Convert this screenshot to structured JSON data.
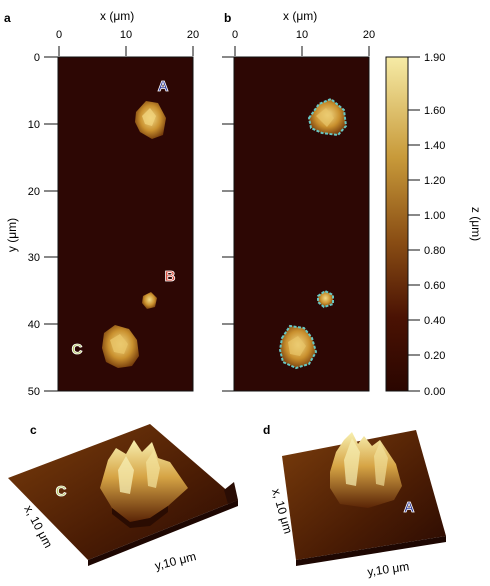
{
  "panels": {
    "a": "a",
    "b": "b",
    "c": "c",
    "d": "d"
  },
  "x_axis": {
    "label": "x (μm)",
    "ticks": [
      "0",
      "10",
      "20"
    ]
  },
  "y_axis": {
    "label": "y (μm)",
    "ticks": [
      "0",
      "10",
      "20",
      "30",
      "40",
      "50"
    ]
  },
  "colorbar": {
    "label": "z (μm)",
    "ticks": [
      "1.90",
      "1.60",
      "1.40",
      "1.20",
      "1.00",
      "0.80",
      "0.60",
      "0.40",
      "0.20",
      "0.00"
    ],
    "colors": [
      "#2a0600",
      "#5a1d04",
      "#8a4e14",
      "#c08a2a",
      "#f4e59a"
    ]
  },
  "markers": {
    "A": {
      "text": "A",
      "color": "#2f3a9a"
    },
    "B": {
      "text": "B",
      "color": "#d64a3a"
    },
    "C": {
      "text": "C",
      "color": "#b8c86a"
    }
  },
  "axes_3d": {
    "c_x": "x, 10 μm",
    "c_y": "y,10 μm",
    "d_x": "x, 10 μm",
    "d_y": "y,10 μm"
  },
  "colors": {
    "map_background": "#2d0704",
    "outline": "#67c7c4"
  }
}
